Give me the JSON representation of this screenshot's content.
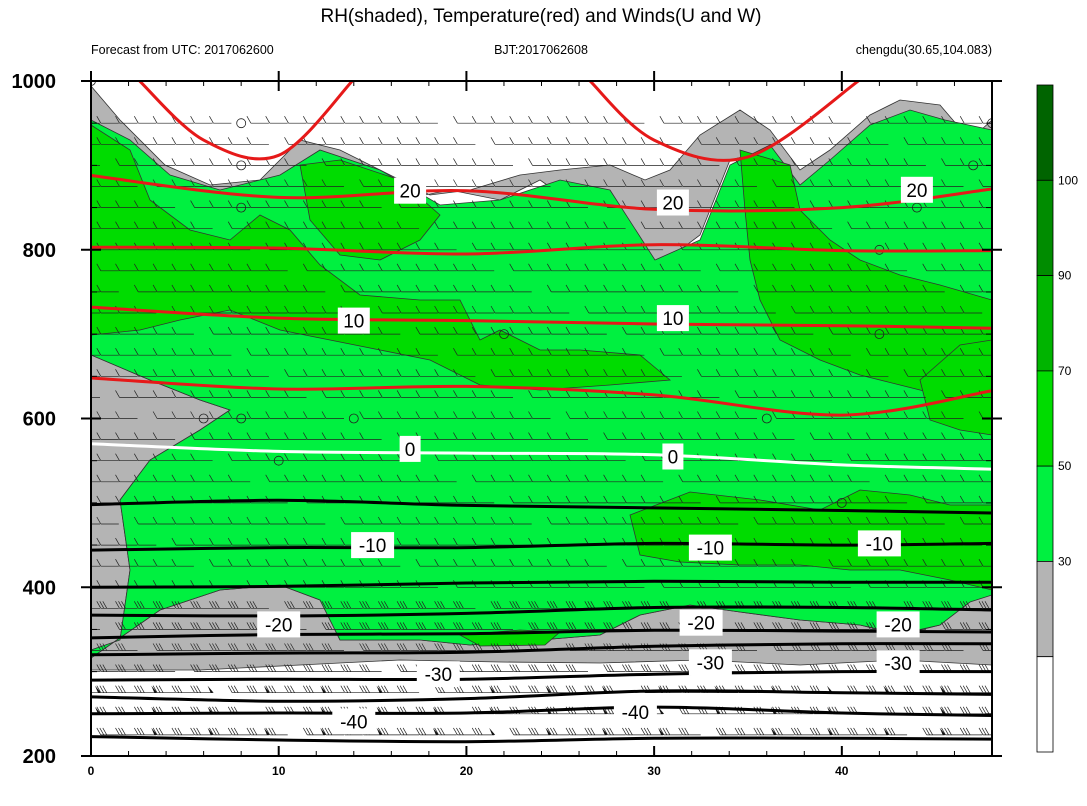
{
  "chart_data": {
    "type": "contour",
    "title": "RH(shaded), Temperature(red) and Winds(U and W)",
    "subtitle_left": "Forecast from UTC: 2017062600",
    "subtitle_center": "BJT:2017062608",
    "subtitle_right": "chengdu(30.65,104.083)",
    "xlim": [
      0,
      48
    ],
    "ylim": [
      1000,
      200
    ],
    "x_ticks": [
      "0",
      "10",
      "20",
      "30",
      "40"
    ],
    "y_ticks": [
      "200",
      "400",
      "600",
      "800",
      "1000"
    ],
    "colorbar": {
      "levels": [
        "30",
        "50",
        "70",
        "90",
        "100"
      ],
      "colors": [
        "#ffffff",
        "#b4b4b4",
        "#00f040",
        "#00dc00",
        "#00b400",
        "#008c00",
        "#006400"
      ]
    },
    "cold_contours": [
      {
        "level": -40,
        "label": "-40",
        "points": [
          [
            0,
            223
          ],
          [
            10,
            219
          ],
          [
            20,
            217
          ],
          [
            30,
            221
          ],
          [
            40,
            221
          ],
          [
            48,
            220
          ]
        ]
      },
      {
        "level": -40,
        "label": "-40",
        "points": [
          [
            0,
            250
          ],
          [
            10,
            251
          ],
          [
            20,
            251
          ],
          [
            30,
            258
          ],
          [
            40,
            251
          ],
          [
            48,
            248
          ]
        ]
      },
      {
        "level": -30,
        "label": "-30",
        "points": [
          [
            0,
            270
          ],
          [
            10,
            265
          ],
          [
            20,
            268
          ],
          [
            30,
            277
          ],
          [
            40,
            275
          ],
          [
            48,
            273
          ]
        ]
      },
      {
        "level": -30,
        "label": "-30",
        "points": [
          [
            0,
            290
          ],
          [
            10,
            291
          ],
          [
            20,
            291
          ],
          [
            30,
            297
          ],
          [
            40,
            300
          ],
          [
            48,
            300
          ]
        ]
      },
      {
        "level": -30,
        "label": "-30",
        "points": [
          [
            0,
            320
          ],
          [
            10,
            322
          ],
          [
            20,
            323
          ],
          [
            30,
            330
          ],
          [
            40,
            333
          ],
          [
            48,
            333
          ]
        ]
      },
      {
        "level": -20,
        "label": "-20",
        "points": [
          [
            0,
            340
          ],
          [
            10,
            344
          ],
          [
            20,
            345
          ],
          [
            30,
            349
          ],
          [
            40,
            348
          ],
          [
            48,
            347
          ]
        ]
      },
      {
        "level": -20,
        "label": "-20",
        "points": [
          [
            0,
            367
          ],
          [
            10,
            366
          ],
          [
            20,
            369
          ],
          [
            30,
            376
          ],
          [
            40,
            376
          ],
          [
            48,
            373
          ]
        ]
      },
      {
        "level": -10,
        "label": "-10",
        "points": [
          [
            0,
            400
          ],
          [
            10,
            401
          ],
          [
            20,
            405
          ],
          [
            30,
            407
          ],
          [
            40,
            406
          ],
          [
            48,
            406
          ]
        ]
      },
      {
        "level": -10,
        "label": "-10",
        "points": [
          [
            0,
            444
          ],
          [
            10,
            447
          ],
          [
            20,
            447
          ],
          [
            30,
            452
          ],
          [
            40,
            450
          ],
          [
            48,
            452
          ]
        ]
      },
      {
        "level": -10,
        "label": "-10",
        "points": [
          [
            0,
            498
          ],
          [
            10,
            503
          ],
          [
            20,
            497
          ],
          [
            30,
            494
          ],
          [
            40,
            491
          ],
          [
            48,
            488
          ]
        ]
      }
    ],
    "freezing_contour": {
      "level": 0,
      "label": "0",
      "points": [
        [
          0,
          570
        ],
        [
          10,
          561
        ],
        [
          20,
          559
        ],
        [
          30,
          557
        ],
        [
          40,
          545
        ],
        [
          48,
          540
        ]
      ]
    },
    "warm_contours": [
      {
        "level": 10,
        "label": "",
        "points": [
          [
            0,
            648
          ],
          [
            10,
            635
          ],
          [
            20,
            638
          ],
          [
            30,
            628
          ],
          [
            40,
            604
          ],
          [
            48,
            633
          ]
        ]
      },
      {
        "level": 10,
        "label": "10",
        "points": [
          [
            0,
            732
          ],
          [
            10,
            719
          ],
          [
            20,
            716
          ],
          [
            30,
            712
          ],
          [
            40,
            710
          ],
          [
            48,
            707
          ]
        ]
      },
      {
        "level": 20,
        "label": "",
        "points": [
          [
            0,
            803
          ],
          [
            10,
            802
          ],
          [
            20,
            795
          ],
          [
            30,
            806
          ],
          [
            40,
            799
          ],
          [
            48,
            799
          ]
        ]
      },
      {
        "level": 20,
        "label": "20",
        "points": [
          [
            0,
            888
          ],
          [
            10,
            862
          ],
          [
            20,
            870
          ],
          [
            30,
            848
          ],
          [
            40,
            850
          ],
          [
            48,
            872
          ]
        ]
      },
      {
        "level": 30,
        "label": "",
        "points": [
          [
            2.5,
            1002
          ],
          [
            6,
            930
          ],
          [
            10,
            912
          ],
          [
            14,
            1002
          ]
        ]
      },
      {
        "level": 30,
        "label": "",
        "points": [
          [
            26.5,
            1002
          ],
          [
            30,
            930
          ],
          [
            35,
            910
          ],
          [
            41,
            1002
          ]
        ]
      }
    ],
    "contour_labels": [
      {
        "text": "-40",
        "x": 14,
        "y": 241
      },
      {
        "text": "-40",
        "x": 29,
        "y": 252
      },
      {
        "text": "-30",
        "x": 18.5,
        "y": 297
      },
      {
        "text": "-30",
        "x": 33,
        "y": 311
      },
      {
        "text": "-30",
        "x": 43,
        "y": 310
      },
      {
        "text": "-20",
        "x": 10,
        "y": 356
      },
      {
        "text": "-20",
        "x": 32.5,
        "y": 358
      },
      {
        "text": "-20",
        "x": 43,
        "y": 356
      },
      {
        "text": "-10",
        "x": 15,
        "y": 450
      },
      {
        "text": "-10",
        "x": 33,
        "y": 447
      },
      {
        "text": "-10",
        "x": 42,
        "y": 452
      },
      {
        "text": "0",
        "x": 17,
        "y": 564
      },
      {
        "text": "0",
        "x": 31,
        "y": 555
      },
      {
        "text": "10",
        "x": 14,
        "y": 716
      },
      {
        "text": "10",
        "x": 31,
        "y": 719
      },
      {
        "text": "20",
        "x": 17,
        "y": 870
      },
      {
        "text": "20",
        "x": 31,
        "y": 856
      },
      {
        "text": "20",
        "x": 44,
        "y": 871
      }
    ]
  }
}
